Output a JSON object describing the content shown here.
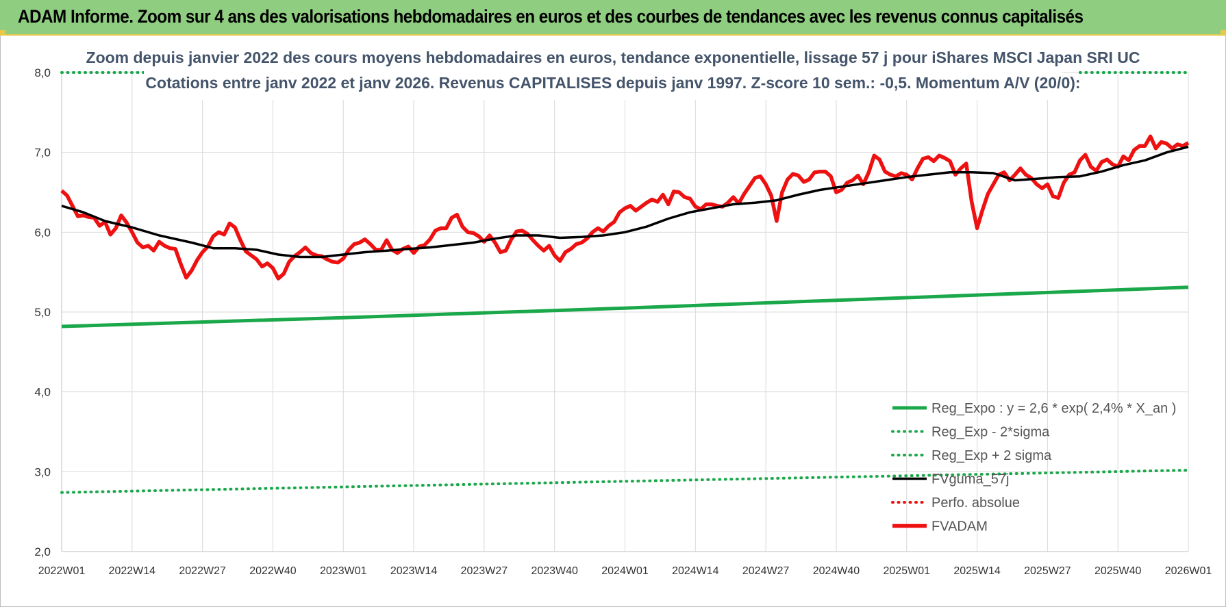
{
  "banner": {
    "title": "ADAM Informe. Zoom sur 4 ans des valorisations hebdomadaires en euros et des courbes de tendances avec les revenus connus capitalisés"
  },
  "colors": {
    "banner_bg": "#8fcd80",
    "green": "#1aa84b",
    "black": "#000000",
    "red": "#ee1111",
    "title_text": "#44546a"
  },
  "chart_data": {
    "type": "line",
    "title": "Zoom depuis janvier 2022 des cours moyens hebdomadaires en euros, tendance exponentielle, lissage 57 j pour iShares MSCI Japan SRI UC",
    "subtitle": "Cotations entre janv 2022 et janv 2026. Revenus CAPITALISES depuis janv 1997. Z-score 10 sem.: -0,5. Momentum A/V (20/0):",
    "ylim": [
      2.0,
      8.0
    ],
    "y_ticks": [
      "2,0",
      "3,0",
      "4,0",
      "5,0",
      "6,0",
      "7,0",
      "8,0"
    ],
    "x_tick_labels": [
      "2022W01",
      "2022W14",
      "2022W27",
      "2022W40",
      "2023W01",
      "2023W14",
      "2023W27",
      "2023W40",
      "2024W01",
      "2024W14",
      "2024W27",
      "2024W40",
      "2025W01",
      "2025W14",
      "2025W27",
      "2025W40",
      "2026W01"
    ],
    "grid": true,
    "legend_position": "bottom-right",
    "series": [
      {
        "name": "Reg_Expo : y = 2,6 * exp( 2,4% *  X_an )",
        "style": "solid",
        "color": "#1aa84b",
        "x": [
          0,
          52,
          104,
          156,
          208
        ],
        "y": [
          4.82,
          4.93,
          5.05,
          5.18,
          5.31
        ]
      },
      {
        "name": "Reg_Exp - 2*sigma",
        "style": "dotted",
        "color": "#1aa84b",
        "x": [
          0,
          52,
          104,
          156,
          208
        ],
        "y": [
          2.74,
          2.81,
          2.88,
          2.95,
          3.02
        ]
      },
      {
        "name": "Reg_Exp + 2 sigma",
        "style": "dotted",
        "color": "#1aa84b",
        "x": [
          0,
          16,
          188,
          208
        ],
        "y": [
          8.0,
          8.0,
          8.0,
          8.0
        ],
        "clipped_segments": [
          [
            0,
            16
          ],
          [
            188,
            208
          ]
        ]
      },
      {
        "name": "FVguma_57j",
        "style": "solid",
        "color": "#000000",
        "x": [
          0,
          4,
          8,
          13,
          18,
          24,
          28,
          32,
          36,
          40,
          44,
          48,
          52,
          56,
          60,
          64,
          68,
          72,
          76,
          80,
          84,
          88,
          92,
          96,
          100,
          104,
          108,
          112,
          116,
          120,
          124,
          128,
          132,
          136,
          140,
          144,
          148,
          152,
          156,
          160,
          164,
          168,
          172,
          176,
          180,
          184,
          188,
          192,
          196,
          200,
          204,
          208
        ],
        "y": [
          6.33,
          6.25,
          6.14,
          6.06,
          5.96,
          5.87,
          5.8,
          5.8,
          5.78,
          5.72,
          5.69,
          5.69,
          5.72,
          5.75,
          5.77,
          5.79,
          5.81,
          5.84,
          5.87,
          5.92,
          5.96,
          5.96,
          5.93,
          5.94,
          5.96,
          6.0,
          6.07,
          6.17,
          6.25,
          6.3,
          6.35,
          6.37,
          6.4,
          6.47,
          6.53,
          6.57,
          6.61,
          6.65,
          6.69,
          6.72,
          6.75,
          6.75,
          6.74,
          6.65,
          6.67,
          6.69,
          6.7,
          6.76,
          6.84,
          6.9,
          7.0,
          7.07
        ]
      },
      {
        "name": "Perfo. absolue",
        "style": "dotted",
        "color": "#ee1111",
        "x": [],
        "y": []
      },
      {
        "name": "FVADAM",
        "style": "solid",
        "color": "#ee1111",
        "x": [
          0,
          1,
          2,
          3,
          4,
          5,
          6,
          7,
          8,
          9,
          10,
          11,
          12,
          13,
          14,
          15,
          16,
          17,
          18,
          19,
          20,
          21,
          22,
          23,
          24,
          25,
          26,
          27,
          28,
          29,
          30,
          31,
          32,
          33,
          34,
          35,
          36,
          37,
          38,
          39,
          40,
          41,
          42,
          43,
          44,
          45,
          46,
          47,
          48,
          49,
          50,
          51,
          52,
          53,
          54,
          55,
          56,
          57,
          58,
          59,
          60,
          61,
          62,
          63,
          64,
          65,
          66,
          67,
          68,
          69,
          70,
          71,
          72,
          73,
          74,
          75,
          76,
          77,
          78,
          79,
          80,
          81,
          82,
          83,
          84,
          85,
          86,
          87,
          88,
          89,
          90,
          91,
          92,
          93,
          94,
          95,
          96,
          97,
          98,
          99,
          100,
          101,
          102,
          103,
          104,
          105,
          106,
          107,
          108,
          109,
          110,
          111,
          112,
          113,
          114,
          115,
          116,
          117,
          118,
          119,
          120,
          121,
          122,
          123,
          124,
          125,
          126,
          127,
          128,
          129,
          130,
          131,
          132,
          133,
          134,
          135,
          136,
          137,
          138,
          139,
          140,
          141,
          142,
          143,
          144,
          145,
          146,
          147,
          148,
          149,
          150,
          151,
          152,
          153,
          154,
          155,
          156,
          157,
          158,
          159,
          160,
          161,
          162,
          163,
          164,
          165,
          166,
          167,
          168,
          169,
          170,
          171,
          172,
          173,
          174,
          175,
          176,
          177,
          178,
          179,
          180,
          181,
          182,
          183,
          184,
          185,
          186,
          187,
          188,
          189,
          190,
          191,
          192,
          193,
          194,
          195,
          196,
          197,
          198,
          199,
          200,
          201,
          202,
          203,
          204,
          205,
          206,
          207,
          208
        ],
        "y": [
          6.52,
          6.46,
          6.33,
          6.2,
          6.21,
          6.19,
          6.18,
          6.08,
          6.13,
          5.97,
          6.05,
          6.21,
          6.12,
          6.0,
          5.87,
          5.81,
          5.83,
          5.77,
          5.88,
          5.83,
          5.8,
          5.79,
          5.6,
          5.43,
          5.52,
          5.65,
          5.75,
          5.82,
          5.95,
          6.0,
          5.97,
          6.11,
          6.06,
          5.9,
          5.76,
          5.71,
          5.66,
          5.57,
          5.61,
          5.55,
          5.42,
          5.48,
          5.63,
          5.7,
          5.75,
          5.81,
          5.74,
          5.71,
          5.7,
          5.66,
          5.63,
          5.62,
          5.67,
          5.78,
          5.85,
          5.87,
          5.91,
          5.85,
          5.78,
          5.78,
          5.9,
          5.78,
          5.74,
          5.79,
          5.82,
          5.74,
          5.82,
          5.84,
          5.91,
          6.02,
          6.05,
          6.05,
          6.18,
          6.22,
          6.07,
          6.0,
          5.99,
          5.95,
          5.88,
          5.96,
          5.87,
          5.75,
          5.77,
          5.91,
          6.01,
          6.02,
          5.98,
          5.9,
          5.83,
          5.77,
          5.83,
          5.71,
          5.64,
          5.75,
          5.79,
          5.85,
          5.87,
          5.92,
          6.0,
          6.05,
          6.01,
          6.08,
          6.13,
          6.25,
          6.3,
          6.33,
          6.27,
          6.32,
          6.37,
          6.41,
          6.38,
          6.47,
          6.35,
          6.51,
          6.5,
          6.44,
          6.42,
          6.32,
          6.29,
          6.35,
          6.35,
          6.33,
          6.32,
          6.37,
          6.44,
          6.36,
          6.48,
          6.58,
          6.68,
          6.7,
          6.6,
          6.46,
          6.14,
          6.5,
          6.66,
          6.73,
          6.71,
          6.63,
          6.66,
          6.75,
          6.76,
          6.76,
          6.7,
          6.5,
          6.53,
          6.62,
          6.65,
          6.71,
          6.6,
          6.75,
          6.96,
          6.91,
          6.76,
          6.72,
          6.7,
          6.74,
          6.72,
          6.66,
          6.8,
          6.92,
          6.94,
          6.89,
          6.96,
          6.93,
          6.89,
          6.72,
          6.8,
          6.86,
          6.38,
          6.05,
          6.28,
          6.48,
          6.6,
          6.72,
          6.75,
          6.65,
          6.72,
          6.8,
          6.72,
          6.68,
          6.6,
          6.55,
          6.6,
          6.45,
          6.43,
          6.62,
          6.72,
          6.75,
          6.9,
          6.97,
          6.82,
          6.77,
          6.88,
          6.91,
          6.85,
          6.82,
          6.95,
          6.9,
          7.03,
          7.08,
          7.08,
          7.2,
          7.05,
          7.13,
          7.11,
          7.05,
          7.1,
          7.08,
          7.12
        ]
      }
    ]
  }
}
